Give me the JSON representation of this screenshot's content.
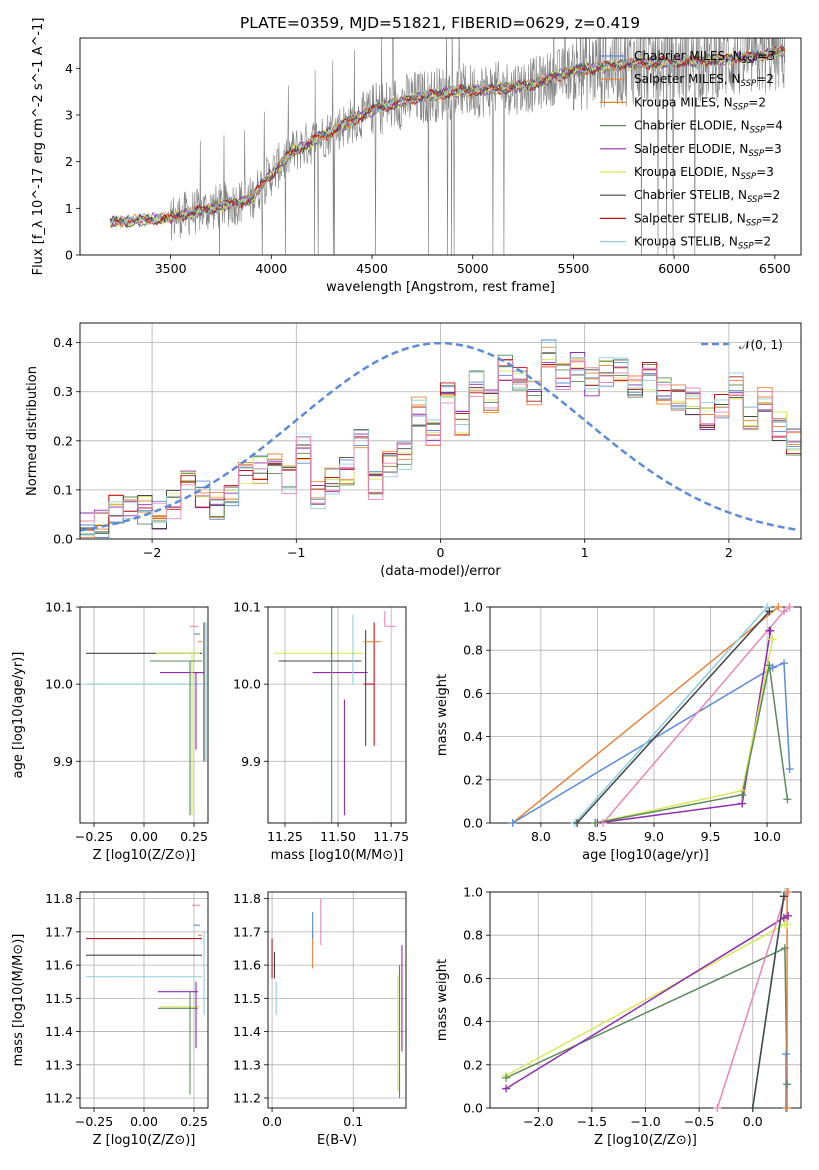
{
  "figure": {
    "title": "PLATE=0359, MJD=51821, FIBERID=0629, z=0.419"
  },
  "colors": {
    "chabrier_miles": "#5b8bd9",
    "salpeter_miles": "#e8843a",
    "kroupa_miles": "#e8861d",
    "chabrier_elodie": "#5c8a5c",
    "salpeter_elodie": "#8f2db0",
    "kroupa_elodie": "#d7ea57",
    "chabrier_stelib": "#444444",
    "salpeter_stelib": "#c0141c",
    "kroupa_stelib": "#8fd0dc",
    "pink": "#e888b6",
    "data": "#808080",
    "normal": "#5b8bd9"
  },
  "legend_top": [
    {
      "key": "chabrier_miles",
      "label": "Chabrier MILES, N",
      "sub": "SSP",
      "tail": "=3"
    },
    {
      "key": "salpeter_miles",
      "label": "Salpeter MILES, N",
      "sub": "SSP",
      "tail": "=2"
    },
    {
      "key": "kroupa_miles",
      "label": "Kroupa MILES, N",
      "sub": "SSP",
      "tail": "=2"
    },
    {
      "key": "chabrier_elodie",
      "label": "Chabrier ELODIE, N",
      "sub": "SSP",
      "tail": "=4"
    },
    {
      "key": "salpeter_elodie",
      "label": "Salpeter ELODIE, N",
      "sub": "SSP",
      "tail": "=3"
    },
    {
      "key": "kroupa_elodie",
      "label": "Kroupa ELODIE, N",
      "sub": "SSP",
      "tail": "=3"
    },
    {
      "key": "chabrier_stelib",
      "label": "Chabrier STELIB, N",
      "sub": "SSP",
      "tail": "=2"
    },
    {
      "key": "salpeter_stelib",
      "label": "Salpeter STELIB, N",
      "sub": "SSP",
      "tail": "=2"
    },
    {
      "key": "kroupa_stelib",
      "label": "Kroupa STELIB, N",
      "sub": "SSP",
      "tail": "=2"
    }
  ],
  "legend_hist": {
    "label": "𝒩(0, 1)"
  },
  "chart_data": [
    {
      "id": "spectrum",
      "type": "line",
      "xlabel": "wavelength [Angstrom, rest frame]",
      "ylabel": "Flux [f_λ 10^-17 erg cm^-2 s^-1 A^-1]",
      "xlim": [
        3050,
        6630
      ],
      "ylim": [
        0,
        4.65
      ],
      "xticks": [
        3500,
        4000,
        4500,
        5000,
        5500,
        6000,
        6500
      ],
      "yticks": [
        0,
        1,
        2,
        3,
        4
      ],
      "grid": false,
      "legend_position": "top-right",
      "continuum_model": {
        "x": [
          3200,
          3500,
          3700,
          3900,
          3950,
          4100,
          4300,
          4500,
          4700,
          4900,
          5100,
          5300,
          5500,
          5800,
          6100,
          6400,
          6500
        ],
        "y": [
          0.7,
          0.8,
          1.0,
          1.2,
          1.5,
          2.2,
          2.65,
          3.1,
          3.35,
          3.5,
          3.55,
          3.65,
          3.95,
          4.1,
          4.15,
          4.25,
          4.35
        ]
      }
    },
    {
      "id": "residual_histogram",
      "type": "bar",
      "xlabel": "(data-model)/error",
      "ylabel": "Normed distribution",
      "xlim": [
        -2.5,
        2.5
      ],
      "ylim": [
        0,
        0.44
      ],
      "xticks": [
        -2,
        -1,
        0,
        1,
        2
      ],
      "yticks": [
        0.0,
        0.1,
        0.2,
        0.3,
        0.4
      ],
      "grid": true,
      "legend_position": "top-right",
      "bin_width": 0.1,
      "bin_start": -2.5,
      "approx_hist": [
        0.03,
        0.03,
        0.06,
        0.07,
        0.06,
        0.05,
        0.07,
        0.13,
        0.09,
        0.07,
        0.08,
        0.13,
        0.14,
        0.15,
        0.12,
        0.18,
        0.09,
        0.12,
        0.14,
        0.2,
        0.11,
        0.15,
        0.17,
        0.26,
        0.22,
        0.3,
        0.24,
        0.32,
        0.28,
        0.35,
        0.33,
        0.3,
        0.38,
        0.33,
        0.35,
        0.32,
        0.34,
        0.35,
        0.31,
        0.33,
        0.3,
        0.29,
        0.28,
        0.25,
        0.27,
        0.31,
        0.24,
        0.28,
        0.23,
        0.2,
        0.22,
        0.18,
        0.16,
        0.17,
        0.14,
        0.14,
        0.1,
        0.11,
        0.09,
        0.08,
        0.07,
        0.08,
        0.06,
        0.05,
        0.06,
        0.05,
        0.05,
        0.04,
        0.04,
        0.03
      ],
      "normal": {
        "mean": 0,
        "std": 1
      }
    },
    {
      "id": "age_vs_Z",
      "type": "scatter",
      "xlabel": "Z [log10(Z/Z⊙)]",
      "ylabel": "age [log10(age/yr)]",
      "xlim": [
        -0.32,
        0.32
      ],
      "ylim": [
        9.82,
        10.1
      ],
      "xticks": [
        -0.25,
        0.0,
        0.25
      ],
      "yticks": [
        9.9,
        10.0,
        10.1
      ],
      "grid": true,
      "errorbars": [
        {
          "key": "chabrier_stelib",
          "x": 0.29,
          "xerr": [
            0.58,
            0.0
          ],
          "y": 10.04,
          "yerr": [
            0.0,
            0.0
          ]
        },
        {
          "key": "kroupa_stelib",
          "x": 0.27,
          "xerr": [
            0.56,
            0.02
          ],
          "y": 10.0,
          "yerr": [
            0.0,
            0.0
          ]
        },
        {
          "key": "salpeter_elodie",
          "x": 0.26,
          "xerr": [
            0.18,
            0.04
          ],
          "y": 10.015,
          "yerr": [
            0.1,
            0.0
          ]
        },
        {
          "key": "kroupa_elodie",
          "x": 0.24,
          "xerr": [
            0.18,
            0.04
          ],
          "y": 10.04,
          "yerr": [
            0.21,
            0.0
          ]
        },
        {
          "key": "chabrier_elodie",
          "x": 0.23,
          "xerr": [
            0.2,
            0.06
          ],
          "y": 10.03,
          "yerr": [
            0.2,
            0.0
          ]
        },
        {
          "key": "pink",
          "x": 0.27,
          "xerr": [
            0.04,
            0.0
          ],
          "y": 10.075,
          "yerr": [
            0.0,
            0.0
          ]
        },
        {
          "key": "chabrier_miles",
          "x": 0.28,
          "xerr": [
            0.03,
            0.0
          ],
          "y": 10.065,
          "yerr": [
            0.0,
            0.0
          ]
        },
        {
          "key": "salpeter_miles",
          "x": 0.29,
          "xerr": [
            0.02,
            0.0
          ],
          "y": 10.055,
          "yerr": [
            0.0,
            0.0
          ]
        },
        {
          "key": "chabrier_stelib_v",
          "x": 0.3,
          "xerr": [
            0.0,
            0.0
          ],
          "y": 10.0,
          "yerr": [
            0.1,
            0.08
          ]
        },
        {
          "key": "kroupa_stelib_v",
          "x": 0.31,
          "xerr": [
            0.0,
            0.0
          ],
          "y": 10.0,
          "yerr": [
            0.1,
            0.08
          ]
        }
      ]
    },
    {
      "id": "age_vs_mass",
      "type": "scatter",
      "xlabel": "mass [log10(M/M⊙)]",
      "ylabel": "",
      "xlim": [
        11.17,
        11.82
      ],
      "ylim": [
        9.82,
        10.1
      ],
      "xticks": [
        11.25,
        11.5,
        11.75
      ],
      "yticks": [
        9.9,
        10.0,
        10.1
      ],
      "grid": true,
      "errorbars": [
        {
          "key": "chabrier_stelib",
          "x": 11.53,
          "xerr": [
            0.31,
            0.08
          ],
          "y": 10.03,
          "yerr": [
            0.0,
            0.0
          ]
        },
        {
          "key": "kroupa_elodie",
          "x": 11.5,
          "xerr": [
            0.3,
            0.12
          ],
          "y": 10.04,
          "yerr": [
            0.0,
            0.0
          ]
        },
        {
          "key": "salpeter_elodie",
          "x": 11.53,
          "xerr": [
            0.15,
            0.11
          ],
          "y": 10.015,
          "yerr": [
            0.0,
            0.0
          ]
        },
        {
          "key": "kroupa_stelib",
          "x": 11.57,
          "xerr": [
            0.0,
            0.0
          ],
          "y": 10.0,
          "yerr": [
            0.0,
            0.09
          ]
        },
        {
          "key": "chabrier_elodie",
          "x": 11.47,
          "xerr": [
            0.0,
            0.0
          ],
          "y": 9.98,
          "yerr": [
            0.16,
            0.17
          ]
        },
        {
          "key": "salpeter_elodie_v",
          "x": 11.53,
          "xerr": [
            0.0,
            0.0
          ],
          "y": 9.98,
          "yerr": [
            0.15,
            0.0
          ]
        },
        {
          "key": "salpeter_stelib",
          "x": 11.67,
          "xerr": [
            0.05,
            0.0
          ],
          "y": 10.0,
          "yerr": [
            0.08,
            0.08
          ]
        },
        {
          "key": "chabrier_stelib_v",
          "x": 11.63,
          "xerr": [
            0.0,
            0.0
          ],
          "y": 10.0,
          "yerr": [
            0.08,
            0.07
          ]
        },
        {
          "key": "salpeter_miles",
          "x": 11.67,
          "xerr": [
            0.05,
            0.03
          ],
          "y": 10.055,
          "yerr": [
            0.0,
            0.0
          ]
        },
        {
          "key": "chabrier_miles",
          "x": 11.7,
          "xerr": [
            0.0,
            0.0
          ],
          "y": 10.06,
          "yerr": [
            0.0,
            0.0
          ]
        },
        {
          "key": "pink",
          "x": 11.72,
          "xerr": [
            0.0,
            0.05
          ],
          "y": 10.075,
          "yerr": [
            0.0,
            0.02
          ]
        }
      ]
    },
    {
      "id": "cumulative_weight_vs_age",
      "type": "line",
      "xlabel": "age [log10(age/yr)]",
      "ylabel": "mass weight",
      "xlim": [
        7.55,
        10.3
      ],
      "ylim": [
        0.0,
        1.0
      ],
      "xticks": [
        8.0,
        8.5,
        9.0,
        9.5,
        10.0
      ],
      "yticks": [
        0.0,
        0.2,
        0.4,
        0.6,
        0.8,
        1.0
      ],
      "grid": true,
      "series": [
        {
          "key": "salpeter_miles",
          "x": [
            7.75,
            10.1
          ],
          "y": [
            0.0,
            1.0
          ]
        },
        {
          "key": "chabrier_miles",
          "x": [
            7.75,
            10.05,
            10.15,
            10.2
          ],
          "y": [
            0.0,
            0.72,
            0.74,
            0.25
          ]
        },
        {
          "key": "kroupa_stelib",
          "x": [
            8.3,
            10.0
          ],
          "y": [
            0.0,
            1.0
          ]
        },
        {
          "key": "chabrier_stelib",
          "x": [
            8.32,
            10.02
          ],
          "y": [
            0.0,
            0.98
          ]
        },
        {
          "key": "pink",
          "x": [
            8.55,
            10.15,
            10.2
          ],
          "y": [
            0.0,
            0.98,
            1.0
          ]
        },
        {
          "key": "salpeter_elodie",
          "x": [
            8.5,
            9.78,
            10.03,
            10.02
          ],
          "y": [
            0.0,
            0.09,
            0.89,
            0.89
          ]
        },
        {
          "key": "kroupa_elodie",
          "x": [
            8.48,
            9.78,
            10.05,
            10.04
          ],
          "y": [
            0.0,
            0.15,
            0.85,
            0.85
          ]
        },
        {
          "key": "chabrier_elodie",
          "x": [
            8.48,
            9.78,
            10.02,
            10.18
          ],
          "y": [
            0.0,
            0.13,
            0.73,
            0.11
          ]
        }
      ]
    },
    {
      "id": "mass_vs_Z",
      "type": "scatter",
      "xlabel": "Z [log10(Z/Z⊙)]",
      "ylabel": "mass [log10(M/M⊙)]",
      "xlim": [
        -0.32,
        0.32
      ],
      "ylim": [
        11.17,
        11.82
      ],
      "xticks": [
        -0.25,
        0.0,
        0.25
      ],
      "yticks": [
        11.2,
        11.3,
        11.4,
        11.5,
        11.6,
        11.7,
        11.8
      ],
      "grid": true,
      "errorbars": [
        {
          "key": "salpeter_stelib",
          "x": 0.29,
          "xerr": [
            0.58,
            0.0
          ],
          "y": 11.68,
          "yerr": [
            0.0,
            0.0
          ]
        },
        {
          "key": "chabrier_stelib",
          "x": 0.29,
          "xerr": [
            0.58,
            0.0
          ],
          "y": 11.63,
          "yerr": [
            0.0,
            0.0
          ]
        },
        {
          "key": "kroupa_stelib",
          "x": 0.29,
          "xerr": [
            0.58,
            0.0
          ],
          "y": 11.565,
          "yerr": [
            0.0,
            0.0
          ]
        },
        {
          "key": "salpeter_elodie",
          "x": 0.27,
          "xerr": [
            0.2,
            0.0
          ],
          "y": 11.52,
          "yerr": [
            0.0,
            0.0
          ]
        },
        {
          "key": "kroupa_elodie",
          "x": 0.24,
          "xerr": [
            0.16,
            0.04
          ],
          "y": 11.475,
          "yerr": [
            0.0,
            0.0
          ]
        },
        {
          "key": "chabrier_elodie",
          "x": 0.23,
          "xerr": [
            0.16,
            0.04
          ],
          "y": 11.47,
          "yerr": [
            0.26,
            0.05
          ]
        },
        {
          "key": "salpeter_elodie_v",
          "x": 0.26,
          "xerr": [
            0.0,
            0.0
          ],
          "y": 11.47,
          "yerr": [
            0.12,
            0.08
          ]
        },
        {
          "key": "pink",
          "x": 0.28,
          "xerr": [
            0.04,
            0.0
          ],
          "y": 11.78,
          "yerr": [
            0.0,
            0.0
          ]
        },
        {
          "key": "chabrier_miles",
          "x": 0.28,
          "xerr": [
            0.03,
            0.0
          ],
          "y": 11.72,
          "yerr": [
            0.0,
            0.0
          ]
        },
        {
          "key": "salpeter_miles",
          "x": 0.29,
          "xerr": [
            0.02,
            0.0
          ],
          "y": 11.69,
          "yerr": [
            0.0,
            0.0
          ]
        },
        {
          "key": "kroupa_stelib_v",
          "x": 0.3,
          "xerr": [
            0.0,
            0.0
          ],
          "y": 11.6,
          "yerr": [
            0.15,
            0.1
          ]
        }
      ]
    },
    {
      "id": "mass_vs_ebv",
      "type": "scatter",
      "xlabel": "E(B-V)",
      "ylabel": "",
      "xlim": [
        -0.005,
        0.165
      ],
      "ylim": [
        11.17,
        11.82
      ],
      "xticks": [
        0.0,
        0.1
      ],
      "yticks": [
        11.2,
        11.3,
        11.4,
        11.5,
        11.6,
        11.7,
        11.8
      ],
      "grid": true,
      "errorbars": [
        {
          "key": "salpeter_stelib",
          "x": 0.0,
          "y": 11.62,
          "yerr": [
            0.06,
            0.06
          ]
        },
        {
          "key": "chabrier_stelib",
          "x": 0.003,
          "y": 11.6,
          "yerr": [
            0.04,
            0.04
          ]
        },
        {
          "key": "kroupa_stelib",
          "x": 0.005,
          "y": 11.5,
          "yerr": [
            0.05,
            0.05
          ]
        },
        {
          "key": "salpeter_miles",
          "x": 0.05,
          "y": 11.65,
          "yerr": [
            0.06,
            0.05
          ]
        },
        {
          "key": "chabrier_miles",
          "x": 0.05,
          "y": 11.72,
          "yerr": [
            0.04,
            0.04
          ]
        },
        {
          "key": "pink",
          "x": 0.06,
          "y": 11.73,
          "yerr": [
            0.07,
            0.07
          ]
        },
        {
          "key": "kroupa_elodie",
          "x": 0.155,
          "y": 11.47,
          "yerr": [
            0.25,
            0.1
          ]
        },
        {
          "key": "chabrier_elodie",
          "x": 0.157,
          "y": 11.45,
          "yerr": [
            0.25,
            0.15
          ]
        },
        {
          "key": "salpeter_elodie",
          "x": 0.16,
          "y": 11.5,
          "yerr": [
            0.16,
            0.16
          ]
        }
      ]
    },
    {
      "id": "cumulative_weight_vs_Z",
      "type": "line",
      "xlabel": "Z [log10(Z/Z⊙)]",
      "ylabel": "mass weight",
      "xlim": [
        -2.45,
        0.45
      ],
      "ylim": [
        0.0,
        1.0
      ],
      "xticks": [
        -2.0,
        -1.5,
        -1.0,
        -0.5,
        0.0
      ],
      "yticks": [
        0.0,
        0.2,
        0.4,
        0.6,
        0.8,
        1.0
      ],
      "grid": true,
      "series": [
        {
          "key": "kroupa_elodie",
          "x": [
            -2.3,
            0.3,
            0.32
          ],
          "y": [
            0.15,
            0.85,
            0.85
          ]
        },
        {
          "key": "chabrier_elodie",
          "x": [
            -2.3,
            0.3,
            0.32
          ],
          "y": [
            0.14,
            0.74,
            0.11
          ]
        },
        {
          "key": "salpeter_elodie",
          "x": [
            -2.3,
            0.29,
            0.33
          ],
          "y": [
            0.09,
            0.88,
            0.89
          ]
        },
        {
          "key": "pink",
          "x": [
            -0.33,
            0.3,
            0.33
          ],
          "y": [
            0.0,
            0.98,
            1.0
          ]
        },
        {
          "key": "kroupa_stelib",
          "x": [
            0.0,
            0.3
          ],
          "y": [
            0.0,
            1.0
          ]
        },
        {
          "key": "chabrier_stelib",
          "x": [
            0.0,
            0.29
          ],
          "y": [
            0.0,
            0.98
          ]
        },
        {
          "key": "chabrier_miles",
          "x": [
            0.31,
            0.31
          ],
          "y": [
            0.0,
            0.25
          ]
        },
        {
          "key": "salpeter_miles",
          "x": [
            0.32,
            0.32
          ],
          "y": [
            0.0,
            1.0
          ]
        }
      ]
    }
  ]
}
